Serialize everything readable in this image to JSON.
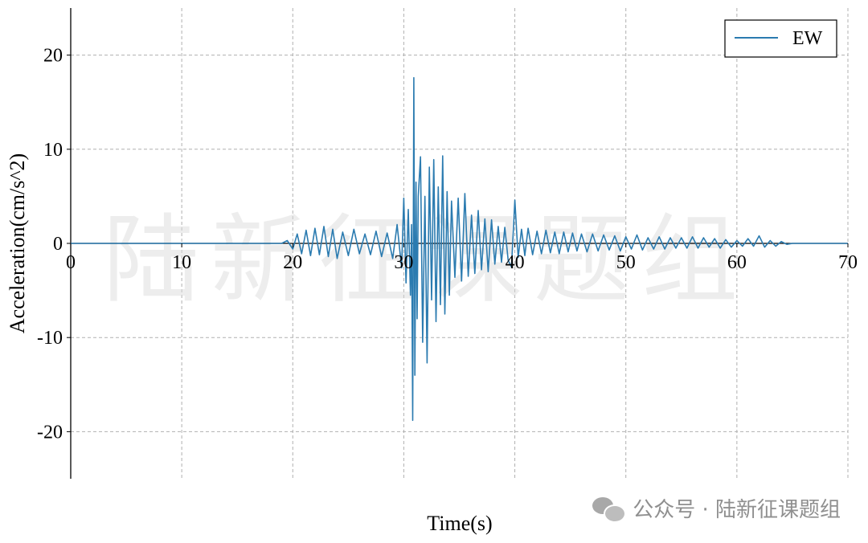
{
  "chart_data": {
    "type": "line",
    "title": "",
    "xlabel": "Time(s)",
    "ylabel": "Acceleration(cm/s^2)",
    "xlim": [
      0,
      70
    ],
    "ylim": [
      -25,
      25
    ],
    "xticks": [
      "0",
      "10",
      "20",
      "30",
      "40",
      "50",
      "60",
      "70"
    ],
    "yticks": [
      "20",
      "10",
      "0",
      "-10",
      "-20"
    ],
    "grid": true,
    "legend_position": "top-right",
    "series": [
      {
        "name": "EW",
        "color": "#2b7bb0",
        "x": [
          0,
          19.0,
          19.5,
          20.0,
          20.4,
          20.8,
          21.2,
          21.6,
          22.0,
          22.4,
          22.8,
          23.2,
          23.6,
          24.0,
          24.5,
          25.0,
          25.5,
          26.0,
          26.5,
          27.0,
          27.5,
          28.0,
          28.5,
          29.0,
          29.4,
          29.8,
          30.0,
          30.2,
          30.4,
          30.6,
          30.7,
          30.8,
          30.9,
          31.0,
          31.1,
          31.2,
          31.3,
          31.5,
          31.7,
          31.9,
          32.1,
          32.3,
          32.5,
          32.7,
          32.9,
          33.1,
          33.3,
          33.5,
          33.7,
          33.9,
          34.1,
          34.3,
          34.6,
          34.9,
          35.2,
          35.5,
          35.8,
          36.1,
          36.4,
          36.7,
          37.0,
          37.3,
          37.6,
          37.9,
          38.2,
          38.5,
          38.8,
          39.1,
          39.4,
          39.7,
          40.0,
          40.3,
          40.6,
          40.9,
          41.2,
          41.6,
          42.0,
          42.4,
          42.8,
          43.2,
          43.6,
          44.0,
          44.4,
          44.8,
          45.2,
          45.6,
          46.0,
          46.5,
          47.0,
          47.5,
          48.0,
          48.5,
          49.0,
          49.5,
          50.0,
          50.5,
          51.0,
          51.5,
          52.0,
          52.5,
          53.0,
          53.5,
          54.0,
          54.5,
          55.0,
          55.5,
          56.0,
          56.5,
          57.0,
          57.5,
          58.0,
          58.5,
          59.0,
          59.5,
          60.0,
          60.5,
          61.0,
          61.5,
          62.0,
          62.5,
          63.0,
          63.5,
          64.0,
          64.5,
          65.0,
          70.0
        ],
        "y": [
          0,
          0,
          0.3,
          -0.6,
          1.0,
          -1.1,
          1.4,
          -1.3,
          1.6,
          -1.2,
          1.8,
          -1.4,
          1.5,
          -1.6,
          1.2,
          -1.3,
          1.5,
          -1.1,
          1.0,
          -1.2,
          1.3,
          -1.4,
          1.1,
          -1.6,
          2.0,
          -2.6,
          4.8,
          -4.2,
          3.6,
          -5.5,
          2.0,
          -18.8,
          17.6,
          -14.0,
          6.5,
          -8.0,
          5.0,
          9.2,
          -10.5,
          5.0,
          -12.7,
          8.1,
          -6.0,
          8.9,
          -8.3,
          6.0,
          -6.5,
          9.3,
          -7.5,
          5.5,
          -5.5,
          4.5,
          -3.6,
          4.8,
          -4.0,
          5.3,
          -3.5,
          3.0,
          -3.2,
          3.5,
          -2.8,
          2.6,
          -3.0,
          2.5,
          -2.2,
          1.8,
          -2.0,
          1.7,
          -1.8,
          -2.5,
          4.6,
          -1.5,
          1.5,
          -1.3,
          1.6,
          -1.2,
          1.3,
          -1.1,
          1.4,
          -1.0,
          1.2,
          -1.1,
          1.2,
          -0.9,
          1.1,
          -0.8,
          1.0,
          -0.9,
          1.0,
          -0.8,
          0.9,
          -0.7,
          0.8,
          -0.8,
          0.7,
          -0.6,
          0.9,
          -0.7,
          0.6,
          -0.6,
          0.7,
          -0.6,
          0.6,
          -0.5,
          0.6,
          -0.5,
          0.7,
          -0.5,
          0.6,
          -0.4,
          0.5,
          -0.5,
          0.4,
          -0.4,
          0.3,
          -0.3,
          0.5,
          -0.3,
          0.8,
          -0.4,
          0.3,
          -0.3,
          0.2,
          -0.1,
          0,
          0
        ]
      }
    ]
  },
  "watermark": {
    "center_text": "陆新征课题组",
    "footer_text": "公众号 · 陆新征课题组",
    "footer_icon": "wechat-icon"
  }
}
